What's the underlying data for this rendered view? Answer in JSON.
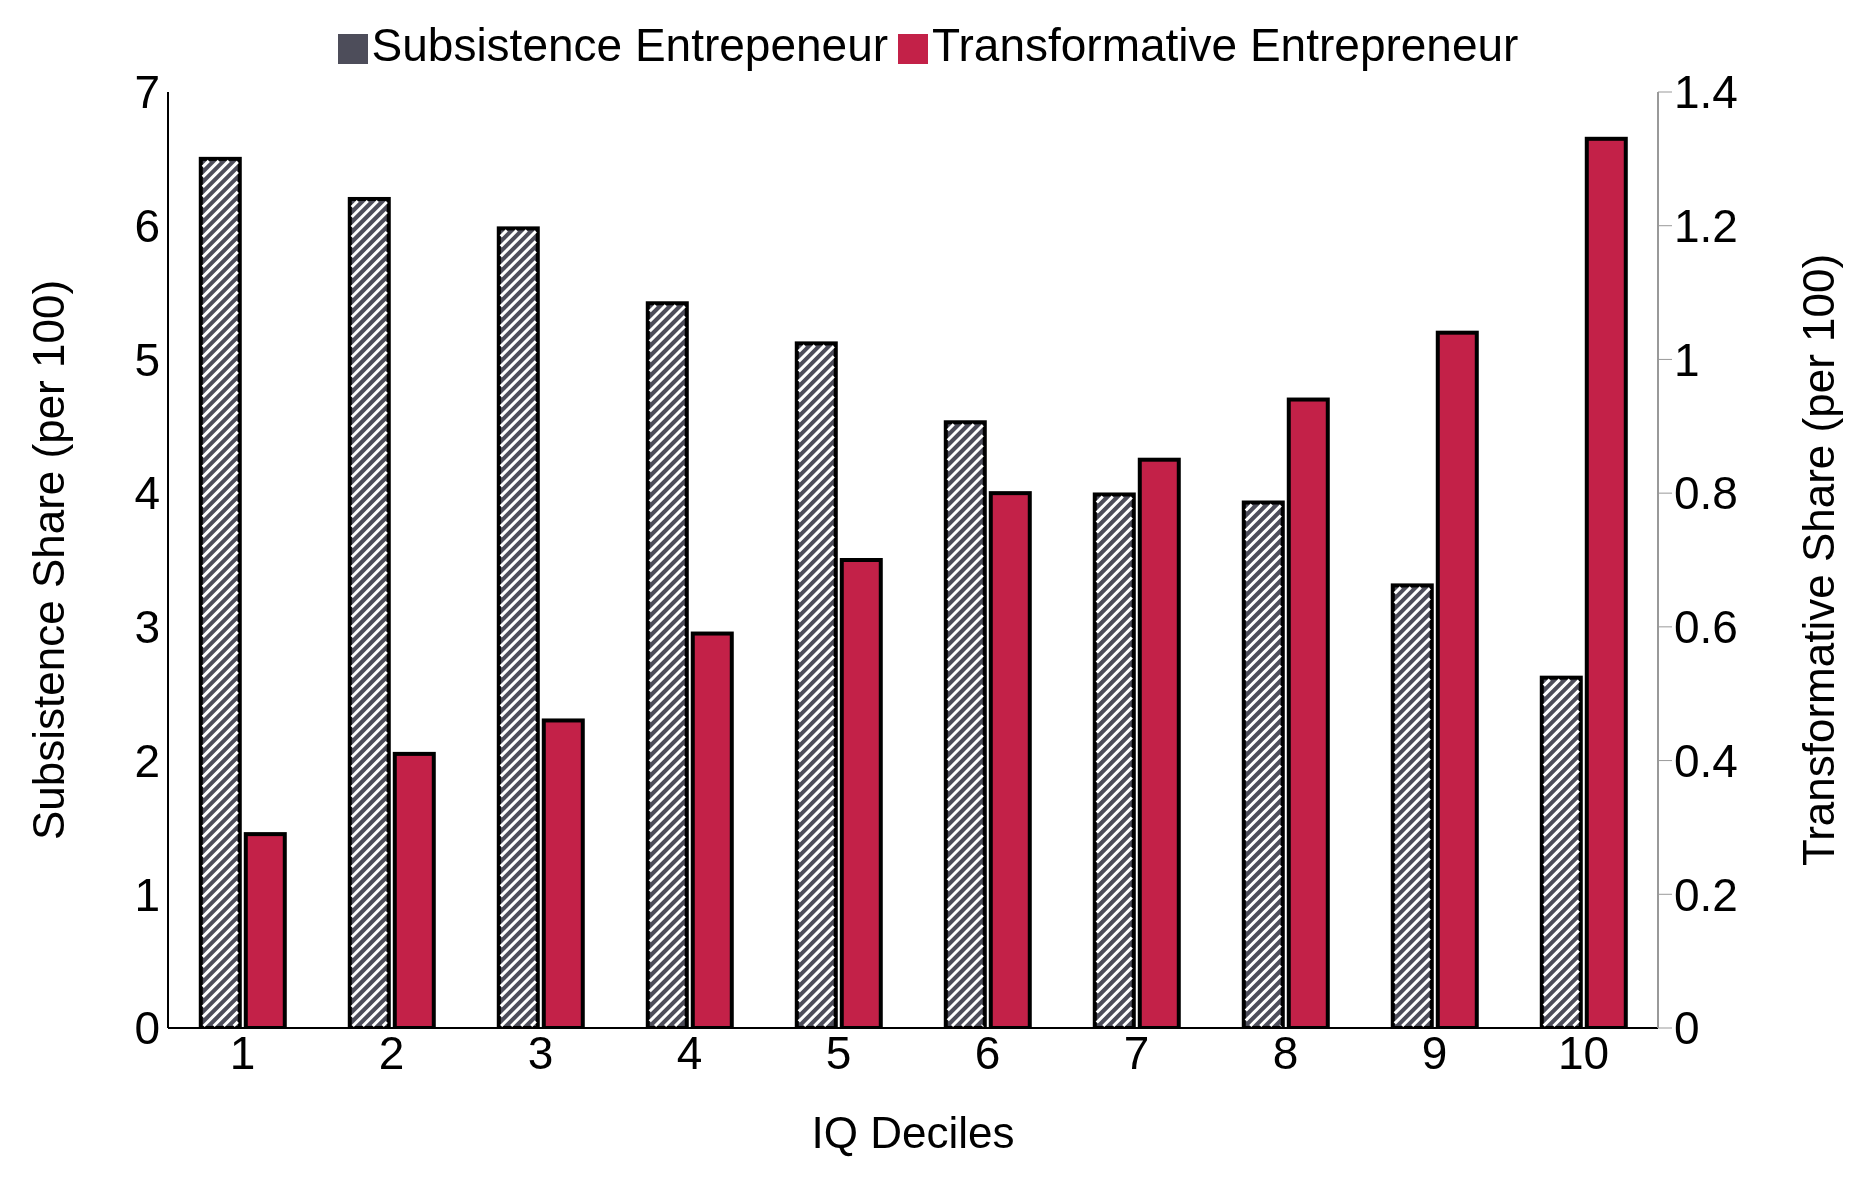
{
  "chart_data": {
    "type": "bar",
    "xlabel": "IQ Deciles",
    "ylabel": "Subsistence Share (per 100)",
    "y2label": "Transformative Share (per 100)",
    "categories": [
      "1",
      "2",
      "3",
      "4",
      "5",
      "6",
      "7",
      "8",
      "9",
      "10"
    ],
    "series": [
      {
        "name": "Subsistence Entrepeneur",
        "color": "#4d4d5a",
        "values": [
          6.5,
          6.2,
          5.98,
          5.42,
          5.12,
          4.53,
          3.99,
          3.93,
          3.31,
          2.62
        ]
      },
      {
        "name": "Transformative Entrepreneur",
        "color": "#c32148",
        "axis": "y2",
        "values": [
          0.29,
          0.41,
          0.46,
          0.59,
          0.7,
          0.8,
          0.85,
          0.94,
          1.04,
          1.33
        ]
      }
    ],
    "ylim": [
      0,
      7
    ],
    "yticks": [
      0,
      1,
      2,
      3,
      4,
      5,
      6,
      7
    ],
    "y2lim": [
      0,
      1.4
    ],
    "y2ticks": [
      0,
      {
        "value": 0.2,
        "label": "0.2"
      },
      {
        "value": 0.4,
        "label": "0.4"
      },
      {
        "value": 0.6,
        "label": "0.6"
      },
      {
        "value": 0.8,
        "label": "0.8"
      },
      1,
      {
        "value": 1.2,
        "label": "1.2"
      },
      {
        "value": 1.4,
        "label": "1.4"
      }
    ],
    "grid": false,
    "legend": "top"
  }
}
